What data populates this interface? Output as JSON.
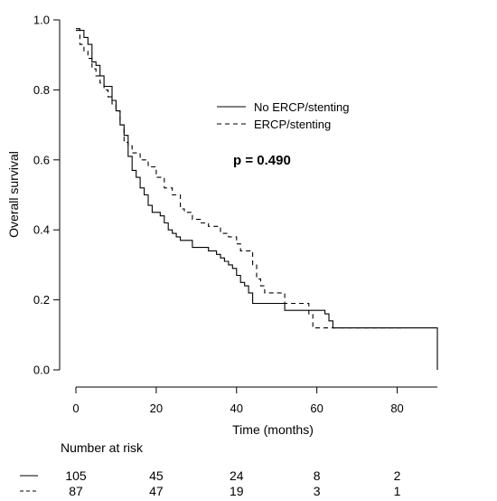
{
  "chart_data": {
    "type": "line",
    "step": true,
    "xlabel": "Time (months)",
    "ylabel": "Overall survival",
    "xlim": [
      0,
      90
    ],
    "ylim": [
      0,
      1
    ],
    "x_ticks": [
      0,
      20,
      40,
      60,
      80
    ],
    "y_ticks": [
      "0.0",
      "0.2",
      "0.4",
      "0.6",
      "0.8",
      "1.0"
    ],
    "grid": false,
    "legend_position": "top-right",
    "annotation": "p = 0.490",
    "series": [
      {
        "name": "No ERCP/stenting",
        "style": "solid",
        "x": [
          0,
          1,
          2,
          3,
          4,
          5,
          6,
          7,
          9,
          10,
          11,
          12,
          13,
          14,
          15,
          16,
          17,
          18,
          19,
          21,
          22,
          23,
          24,
          25,
          26,
          29,
          33,
          35,
          36,
          37,
          38,
          39,
          40,
          41,
          42,
          43,
          44,
          50,
          52,
          56,
          62,
          63,
          64,
          89,
          90
        ],
        "y": [
          0.975,
          0.97,
          0.95,
          0.93,
          0.88,
          0.87,
          0.84,
          0.81,
          0.77,
          0.74,
          0.7,
          0.67,
          0.61,
          0.57,
          0.55,
          0.52,
          0.5,
          0.47,
          0.45,
          0.44,
          0.42,
          0.4,
          0.39,
          0.38,
          0.37,
          0.35,
          0.34,
          0.33,
          0.32,
          0.31,
          0.3,
          0.29,
          0.27,
          0.25,
          0.24,
          0.22,
          0.19,
          0.19,
          0.17,
          0.17,
          0.16,
          0.14,
          0.12,
          0.12,
          0.0
        ]
      },
      {
        "name": "ERCP/stenting",
        "style": "dashed",
        "x": [
          0,
          1,
          2,
          3,
          4,
          5,
          6,
          7,
          8,
          9,
          10,
          11,
          12,
          13,
          14,
          16,
          18,
          20,
          22,
          24,
          26,
          27,
          29,
          31,
          33,
          36,
          38,
          40,
          41,
          44,
          45,
          46,
          47,
          50,
          52,
          58,
          59,
          82
        ],
        "y": [
          0.97,
          0.93,
          0.91,
          0.89,
          0.86,
          0.84,
          0.82,
          0.8,
          0.78,
          0.76,
          0.74,
          0.7,
          0.65,
          0.64,
          0.62,
          0.6,
          0.58,
          0.55,
          0.52,
          0.5,
          0.46,
          0.45,
          0.43,
          0.42,
          0.41,
          0.39,
          0.38,
          0.36,
          0.34,
          0.3,
          0.26,
          0.24,
          0.22,
          0.22,
          0.19,
          0.16,
          0.12,
          0.12
        ]
      }
    ],
    "risk_table": {
      "title": "Number at risk",
      "times": [
        0,
        20,
        40,
        60,
        80
      ],
      "rows": [
        {
          "name": "No ERCP/stenting",
          "style": "solid",
          "counts": [
            105,
            45,
            24,
            8,
            2
          ]
        },
        {
          "name": "ERCP/stenting",
          "style": "dashed",
          "counts": [
            87,
            47,
            19,
            3,
            1
          ]
        }
      ]
    }
  }
}
